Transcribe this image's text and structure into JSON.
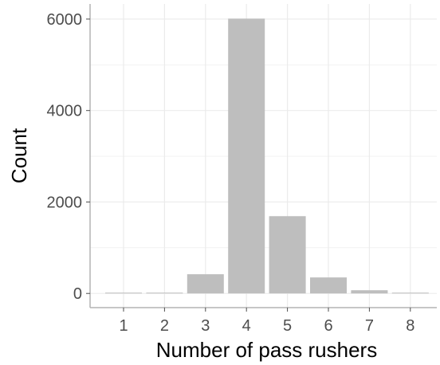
{
  "chart_data": {
    "type": "bar",
    "xlabel": "Number of pass rushers",
    "ylabel": "Count",
    "categories": [
      "1",
      "2",
      "3",
      "4",
      "5",
      "6",
      "7",
      "8"
    ],
    "values": [
      8,
      12,
      420,
      6010,
      1690,
      350,
      70,
      5
    ],
    "y_ticks": [
      "0",
      "2000",
      "4000",
      "6000"
    ],
    "ylim": [
      -310,
      6330
    ],
    "grid": true,
    "bar_color": "#bebebe",
    "grid_color": "#ebebeb",
    "axis_color": "#b3b3b3"
  }
}
